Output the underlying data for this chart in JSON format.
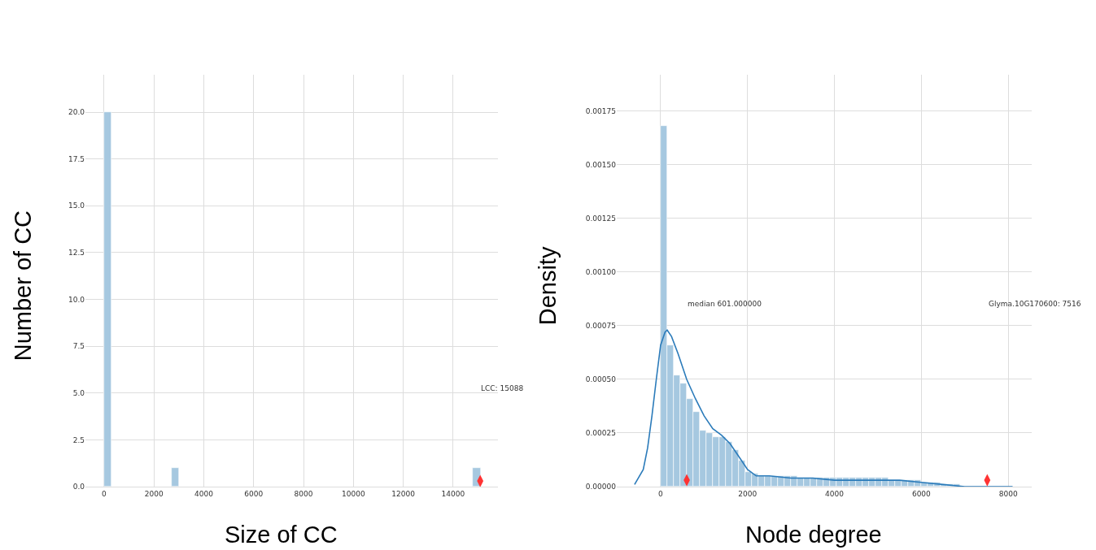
{
  "chart_data": [
    {
      "type": "histogram",
      "xlabel": "Size of CC",
      "ylabel": "Number of CC",
      "bins": [
        0,
        302,
        604,
        906,
        1208,
        1510,
        1812,
        2114,
        2416,
        2718,
        3020,
        3322,
        3624,
        3926,
        4228,
        4530,
        4832,
        5134,
        5436,
        5738,
        6040,
        6342,
        6644,
        6946,
        7248,
        7550,
        7852,
        8154,
        8456,
        8758,
        9060,
        9362,
        9664,
        9966,
        10268,
        10570,
        10872,
        11174,
        11476,
        11778,
        12080,
        12382,
        12684,
        12986,
        13288,
        13590,
        13892,
        14194,
        14496,
        14798,
        15100
      ],
      "series": [
        {
          "type": "histogram",
          "color": "#a6c8e0",
          "values": [
            20,
            0,
            0,
            0,
            0,
            0,
            0,
            0,
            0,
            1,
            0,
            0,
            0,
            0,
            0,
            0,
            0,
            0,
            0,
            0,
            0,
            0,
            0,
            0,
            0,
            0,
            0,
            0,
            0,
            0,
            0,
            0,
            0,
            0,
            0,
            0,
            0,
            0,
            0,
            0,
            0,
            0,
            0,
            0,
            0,
            0,
            0,
            0,
            0,
            1
          ]
        },
        {
          "type": "scatter",
          "color": "#ff3333",
          "x": [
            15088
          ],
          "values": [
            0.3
          ]
        }
      ],
      "xlim": [
        -750,
        15800
      ],
      "xticks": [
        0,
        2000,
        4000,
        6000,
        8000,
        10000,
        12000,
        14000
      ],
      "ylim": [
        0,
        22
      ],
      "yticks": [
        {
          "value": 0,
          "label": "0.0"
        },
        {
          "value": 2.5,
          "label": "2.5"
        },
        {
          "value": 5,
          "label": "5.0"
        },
        {
          "value": 7.5,
          "label": "7.5"
        },
        {
          "value": 10,
          "label": "10.0"
        },
        {
          "value": 12.5,
          "label": "12.5"
        },
        {
          "value": 15,
          "label": "15.0"
        },
        {
          "value": 17.5,
          "label": "17.5"
        },
        {
          "value": 20,
          "label": "20.0"
        }
      ],
      "grid": true,
      "annotations": [
        "LCC: 15088"
      ]
    },
    {
      "type": "histogram",
      "xlabel": "Node degree",
      "ylabel": "Density",
      "series": [
        {
          "type": "histogram",
          "color": "#a6c8e0",
          "bins": [
            0,
            150,
            300,
            450,
            600,
            750,
            900,
            1050,
            1200,
            1350,
            1500,
            1650,
            1800,
            1950,
            2100,
            2250,
            2400,
            2550,
            2700,
            2850,
            3000,
            3150,
            3300,
            3450,
            3600,
            3750,
            3900,
            4050,
            4200,
            4350,
            4500,
            4650,
            4800,
            4950,
            5100,
            5250,
            5400,
            5550,
            5700,
            5850,
            6000,
            6150,
            6300,
            6450,
            6600,
            6750,
            6900,
            7050,
            7200,
            7350,
            7500
          ],
          "values": [
            0.00168,
            0.00066,
            0.00052,
            0.00048,
            0.00041,
            0.00035,
            0.00026,
            0.00025,
            0.00023,
            0.00023,
            0.00021,
            0.00017,
            0.00012,
            7e-05,
            6e-05,
            5e-05,
            5e-05,
            5e-05,
            5e-05,
            5e-05,
            5e-05,
            4e-05,
            4e-05,
            4e-05,
            4e-05,
            4e-05,
            4e-05,
            4e-05,
            4e-05,
            4e-05,
            4e-05,
            4e-05,
            4e-05,
            4e-05,
            4e-05,
            3e-05,
            3e-05,
            3e-05,
            3e-05,
            3e-05,
            2e-05,
            2e-05,
            2e-05,
            1e-05,
            1e-05,
            1e-05,
            0,
            0,
            0,
            0
          ]
        },
        {
          "type": "line",
          "color": "#2b7bba",
          "x": [
            -600,
            -400,
            -300,
            -200,
            -100,
            0,
            100,
            150,
            250,
            400,
            600,
            800,
            1000,
            1200,
            1400,
            1600,
            1800,
            2000,
            2200,
            2500,
            3000,
            3500,
            4000,
            4500,
            5000,
            5500,
            6000,
            6500,
            7000,
            7500,
            8100
          ],
          "values": [
            1e-05,
            8e-05,
            0.00018,
            0.00033,
            0.0005,
            0.00066,
            0.00072,
            0.00073,
            0.0007,
            0.00062,
            0.0005,
            0.00041,
            0.00033,
            0.00027,
            0.00024,
            0.0002,
            0.00014,
            8e-05,
            5e-05,
            5e-05,
            4e-05,
            4e-05,
            3e-05,
            3e-05,
            3e-05,
            3e-05,
            2e-05,
            1e-05,
            0,
            0,
            0
          ]
        },
        {
          "type": "scatter",
          "color": "#ff3333",
          "x": [
            601,
            7516
          ],
          "values": [
            3e-05,
            3e-05
          ]
        }
      ],
      "xlim": [
        -1010,
        8540
      ],
      "xticks": [
        0,
        2000,
        4000,
        6000,
        8000
      ],
      "ylim": [
        0,
        0.00192
      ],
      "yticks": [
        {
          "value": 0,
          "label": "0.00000"
        },
        {
          "value": 0.00025,
          "label": "0.00025"
        },
        {
          "value": 0.0005,
          "label": "0.00050"
        },
        {
          "value": 0.00075,
          "label": "0.00075"
        },
        {
          "value": 0.001,
          "label": "0.00100"
        },
        {
          "value": 0.00125,
          "label": "0.00125"
        },
        {
          "value": 0.0015,
          "label": "0.00150"
        },
        {
          "value": 0.00175,
          "label": "0.00175"
        }
      ],
      "grid": true,
      "annotations": [
        "median 601.000000",
        "Glyma.10G170600: 7516"
      ]
    }
  ]
}
